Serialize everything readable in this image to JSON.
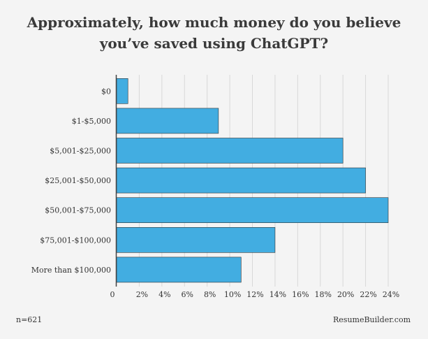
{
  "title_line1": "Approximately, how much money do you believe",
  "title_line2": "you’ve saved using ChatGPT?",
  "footer": {
    "sample_size": "n=621",
    "source": "ResumeBuilder.com"
  },
  "colors": {
    "bar": "#42ade1",
    "bar_edge": "#333333",
    "grid": "#d8d8d8",
    "background": "#f4f4f4"
  },
  "chart_data": {
    "type": "bar",
    "orientation": "horizontal",
    "categories": [
      "$0",
      "$1-$5,000",
      "$5,001-$25,000",
      "$25,001-$50,000",
      "$50,001-$75,000",
      "$75,001-$100,000",
      "More than $100,000"
    ],
    "values": [
      1,
      9,
      20,
      22,
      24,
      14,
      11
    ],
    "x_ticks": [
      "0",
      "2%",
      "4%",
      "6%",
      "8%",
      "10%",
      "12%",
      "14%",
      "16%",
      "18%",
      "20%",
      "22%",
      "24%"
    ],
    "xlim": [
      0,
      24
    ],
    "grid": true,
    "legend": "none"
  }
}
